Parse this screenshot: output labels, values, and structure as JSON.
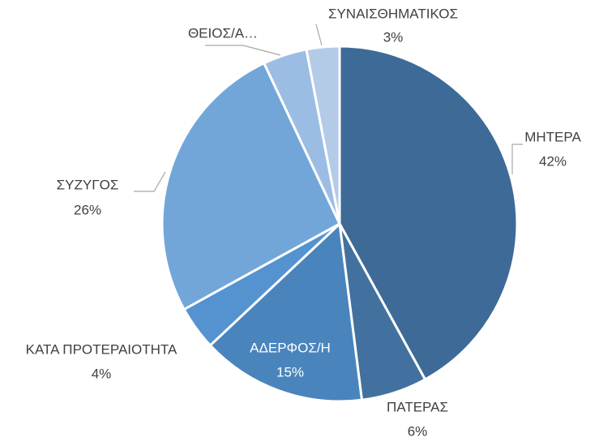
{
  "chart_data": {
    "type": "pie",
    "categories": [
      "ΜΗΤΕΡΑ",
      "ΠΑΤΕΡΑΣ",
      "ΑΔΕΡΦΟΣ/Η",
      "ΚΑΤΑ ΠΡΟΤΕΡΑΙΟΤΗΤΑ",
      "ΣΥΖΥΓΟΣ",
      "ΘΕΙΟΣ/Α…",
      "ΣΥΝΑΙΣΘΗΜΑΤΙΚΟΣ"
    ],
    "values": [
      42,
      6,
      15,
      4,
      26,
      4,
      3
    ],
    "value_labels": [
      "42%",
      "6%",
      "15%",
      "4%",
      "26%",
      null,
      "3%"
    ],
    "colors": [
      "#3e6a97",
      "#43719f",
      "#4a84bd",
      "#5592d0",
      "#72a6d9",
      "#9cbde3",
      "#b4cbe8"
    ]
  }
}
